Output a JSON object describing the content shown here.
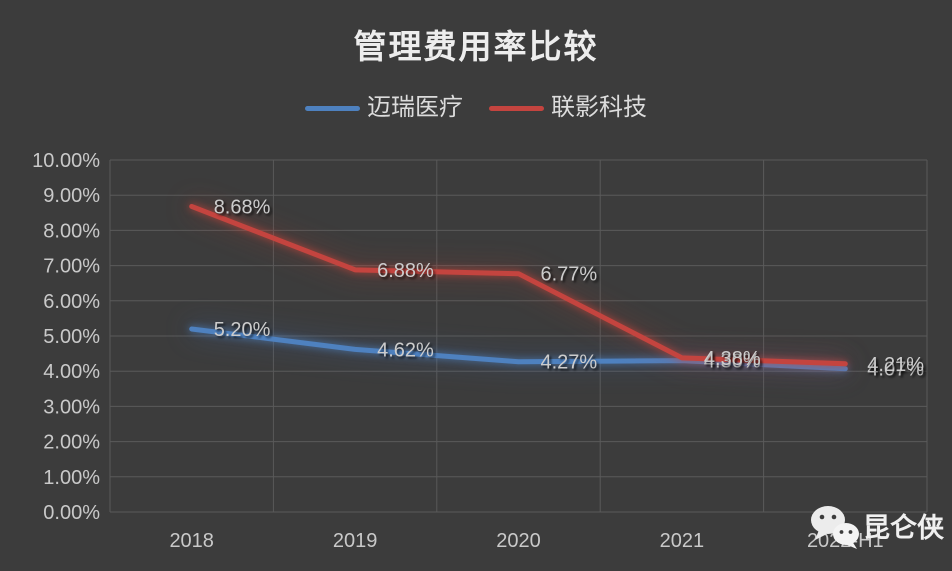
{
  "title": "管理费用率比较",
  "watermark": {
    "name": "昆仑侠",
    "icon": "wechat-icon"
  },
  "colors": {
    "background": "#3C3C3C",
    "gridline": "#5A5A5A",
    "axis_text": "#C9C9C9",
    "data_label_text": "#CCCCCC",
    "title_text": "#EDEDED",
    "series_blue": "#4E81BF",
    "series_red": "#C4443F"
  },
  "chart_data": {
    "type": "line",
    "title": "管理费用率比较",
    "categories": [
      "2018",
      "2019",
      "2020",
      "2021",
      "2022-H1"
    ],
    "series": [
      {
        "name": "迈瑞医疗",
        "color": "#4E81BF",
        "glow_class": "glow-blue",
        "values": [
          5.2,
          4.62,
          4.27,
          4.3,
          4.07
        ],
        "labels": [
          "5.20%",
          "4.62%",
          "4.27%",
          "4.30%",
          "4.07%"
        ]
      },
      {
        "name": "联影科技",
        "color": "#C4443F",
        "glow_class": "glow-red",
        "values": [
          8.68,
          6.88,
          6.77,
          4.38,
          4.21
        ],
        "labels": [
          "8.68%",
          "6.88%",
          "6.77%",
          "4.38%",
          "4.21%"
        ]
      }
    ],
    "xlabel": "",
    "ylabel": "",
    "ylim": [
      0,
      10
    ],
    "y_ticks": [
      "0.00%",
      "1.00%",
      "2.00%",
      "3.00%",
      "4.00%",
      "5.00%",
      "6.00%",
      "7.00%",
      "8.00%",
      "9.00%",
      "10.00%"
    ],
    "grid": true,
    "legend_position": "top"
  }
}
